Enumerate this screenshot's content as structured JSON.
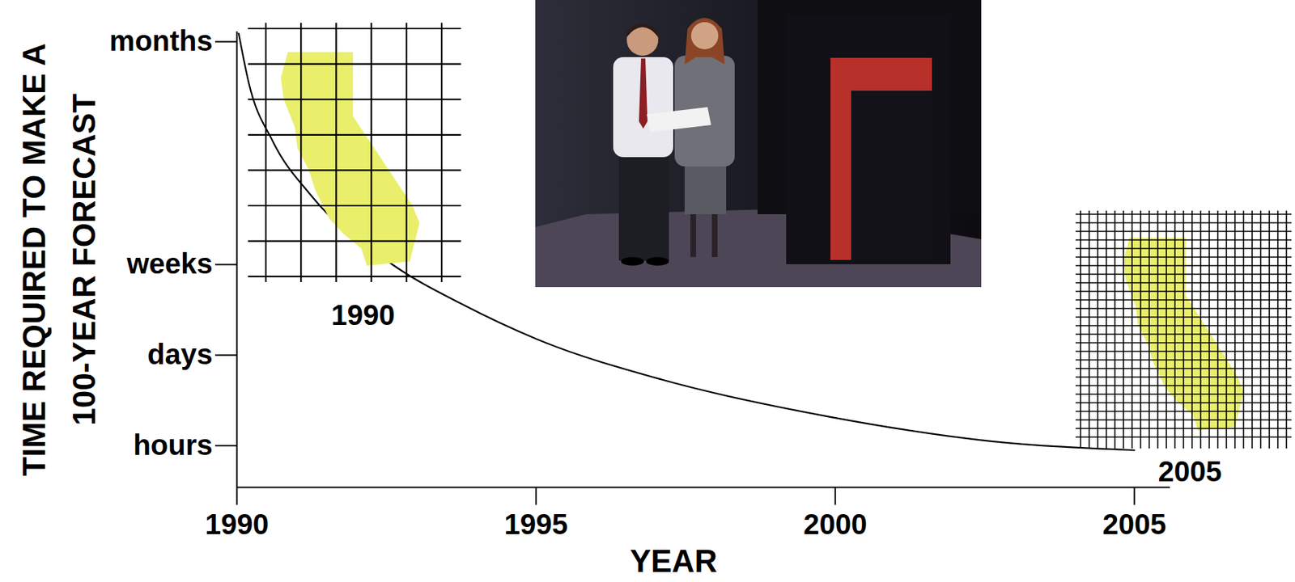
{
  "chart_data": {
    "type": "line",
    "x_label": "YEAR",
    "y_label": "TIME REQUIRED TO MAKE A 100-YEAR FORECAST",
    "x": [
      1990.03,
      1990.2,
      1990.6,
      1991.23,
      1992.6,
      1993.8,
      1995.0,
      1997.1,
      1999.9,
      2002.6,
      2005.0
    ],
    "values": [
      5.55,
      5.0,
      4.36,
      3.77,
      3.0,
      2.55,
      2.18,
      1.73,
      1.32,
      1.05,
      0.95
    ],
    "color": "#000000",
    "xlim": [
      1990,
      2005.6
    ],
    "xticks": [
      1990,
      1995,
      2000,
      2005
    ],
    "ylim": [
      0.54,
      5.57
    ],
    "yticks": [
      {
        "value": 1,
        "label": "hours"
      },
      {
        "value": 2,
        "label": "days"
      },
      {
        "value": 3,
        "label": "weeks"
      },
      {
        "value": 5.46,
        "label": "months"
      }
    ],
    "annotations": [
      {
        "text": "1990"
      },
      {
        "text": "2005"
      }
    ]
  }
}
